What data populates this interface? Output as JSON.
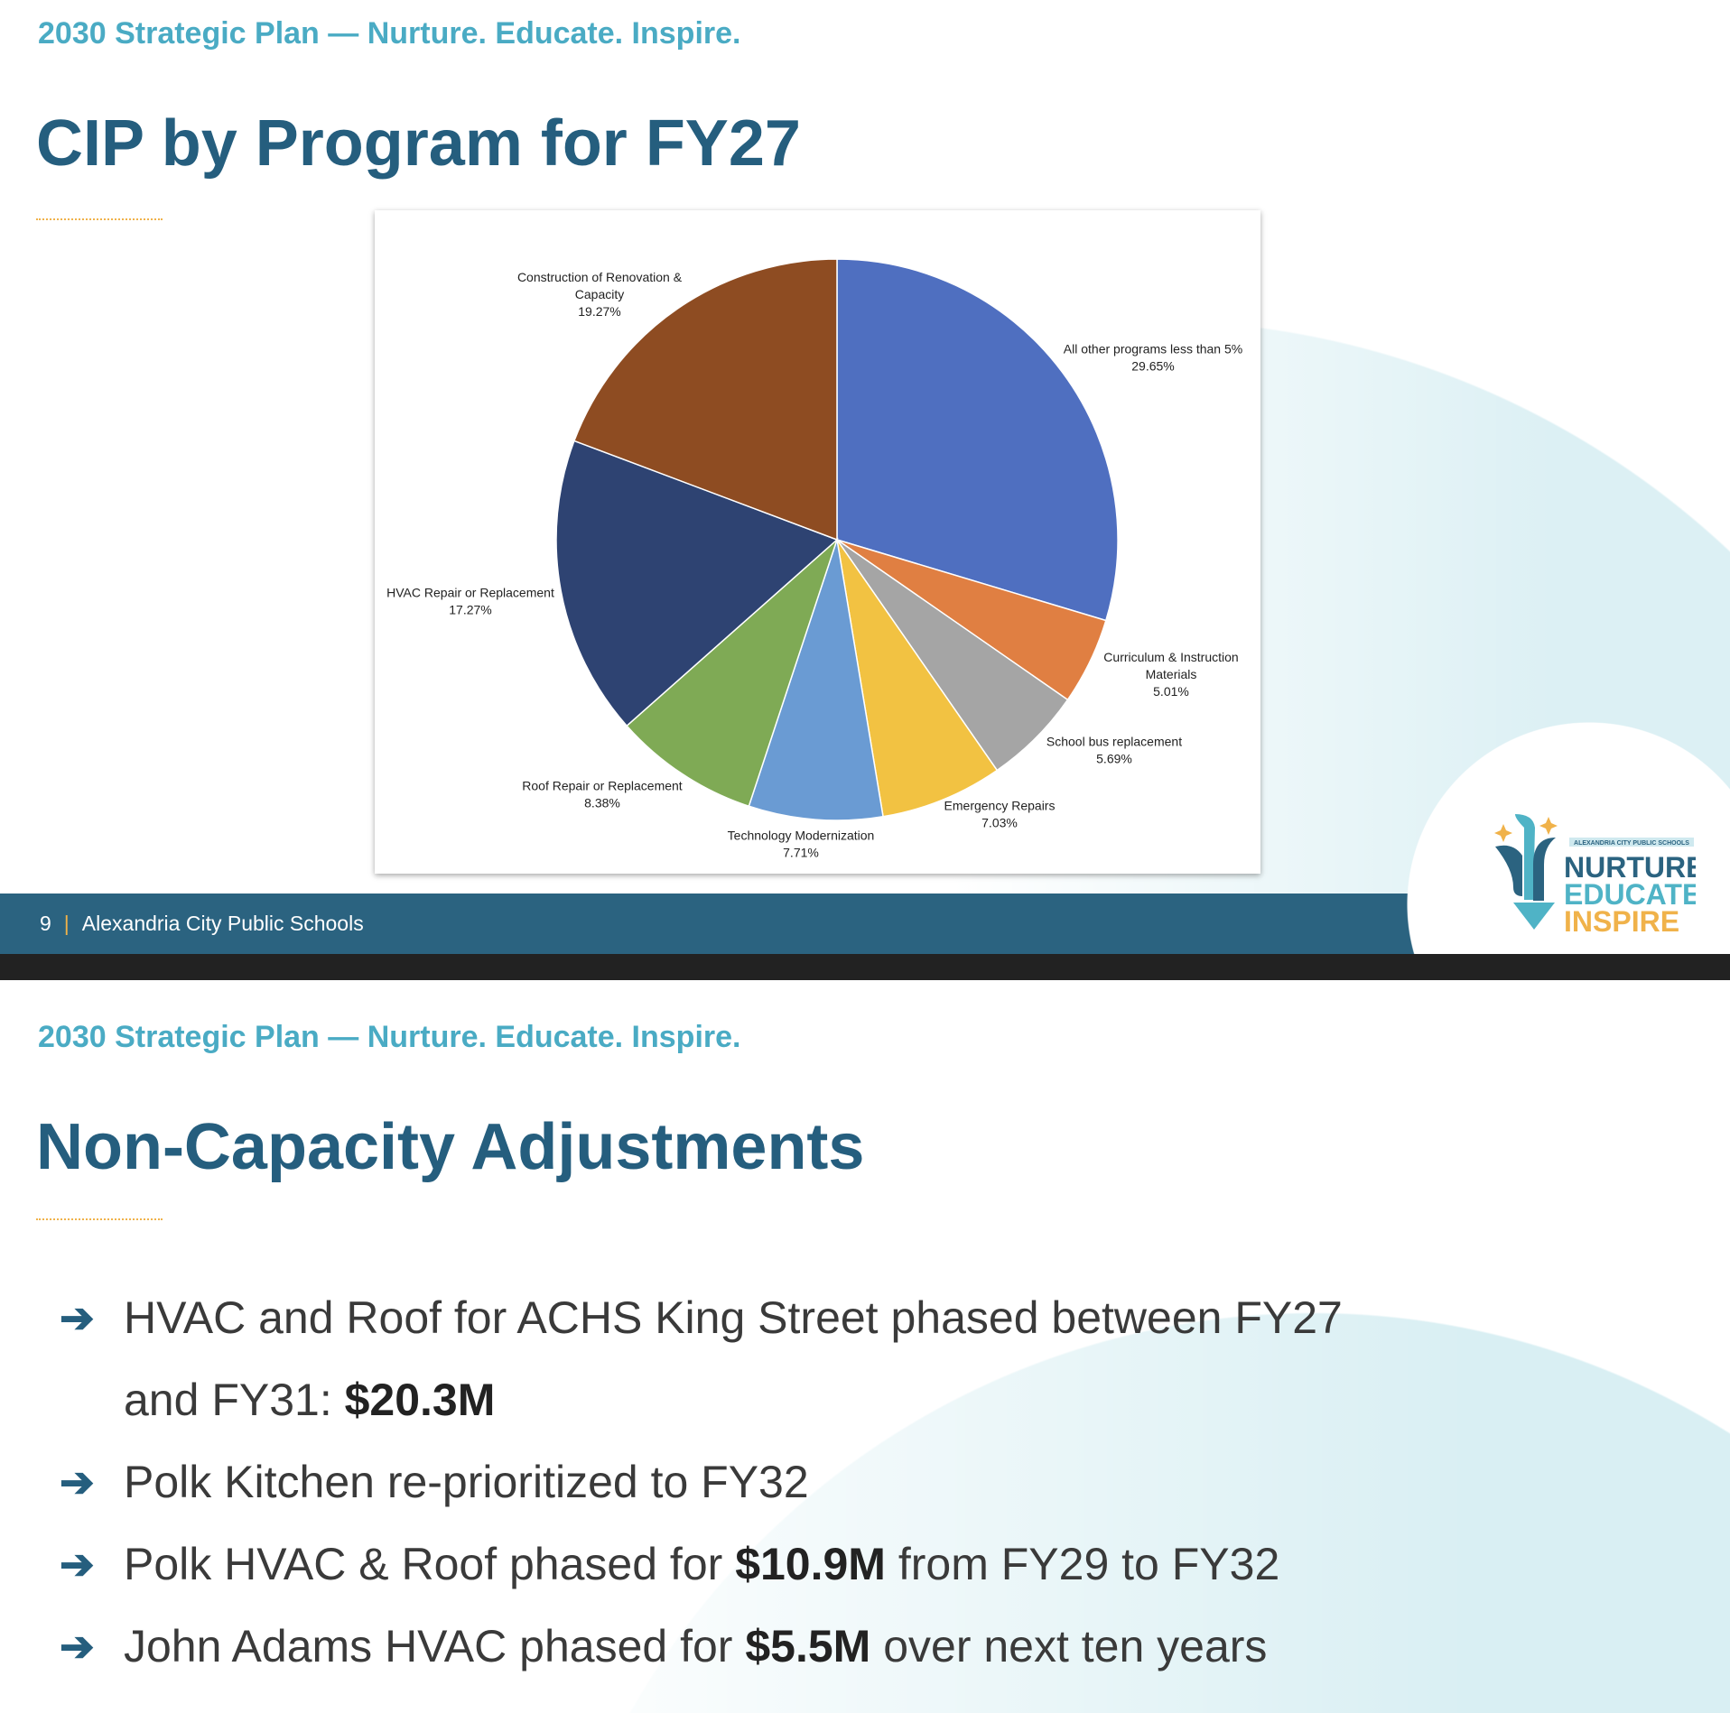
{
  "slide1": {
    "kicker": "2030 Strategic Plan — Nurture. Educate. Inspire.",
    "title": "CIP by Program for FY27",
    "footer": {
      "page": "9",
      "org": "Alexandria City Public Schools"
    },
    "logo": {
      "top": "ALEXANDRIA CITY PUBLIC SCHOOLS",
      "line1": "NURTURE",
      "line2": "EDUCATE",
      "line3": "INSPIRE"
    }
  },
  "chart_data": {
    "type": "pie",
    "title": "",
    "start": "top, clockwise",
    "slices": [
      {
        "label": [
          "All other programs less than 5%"
        ],
        "value": 29.65,
        "value_label": "29.65%",
        "color": "#4f6fc0"
      },
      {
        "label": [
          "Curriculum & Instruction",
          "Materials"
        ],
        "value": 5.01,
        "value_label": "5.01%",
        "color": "#e07f42"
      },
      {
        "label": [
          "School bus replacement"
        ],
        "value": 5.69,
        "value_label": "5.69%",
        "color": "#a5a5a5"
      },
      {
        "label": [
          "Emergency Repairs"
        ],
        "value": 7.03,
        "value_label": "7.03%",
        "color": "#f2c242"
      },
      {
        "label": [
          "Technology Modernization"
        ],
        "value": 7.71,
        "value_label": "7.71%",
        "color": "#6a9bd3"
      },
      {
        "label": [
          "Roof Repair or Replacement"
        ],
        "value": 8.38,
        "value_label": "8.38%",
        "color": "#7faa55"
      },
      {
        "label": [
          "HVAC Repair or Replacement"
        ],
        "value": 17.27,
        "value_label": "17.27%",
        "color": "#2e4372"
      },
      {
        "label": [
          "Construction of Renovation &",
          "Capacity"
        ],
        "value": 19.27,
        "value_label": "19.27%",
        "color": "#8e4c22"
      }
    ]
  },
  "slide2": {
    "kicker": "2030 Strategic Plan — Nurture. Educate. Inspire.",
    "title": "Non-Capacity Adjustments",
    "bullets": [
      {
        "a": "HVAC and Roof for ACHS King Street phased between FY27 and FY31: ",
        "b": "$20.3M",
        "c": ""
      },
      {
        "a": "Polk Kitchen re-prioritized to FY32",
        "b": "",
        "c": ""
      },
      {
        "a": "Polk HVAC & Roof phased for ",
        "b": "$10.9M",
        "c": " from FY29 to FY32"
      },
      {
        "a": "John Adams HVAC phased for ",
        "b": "$5.5M",
        "c": " over next ten years"
      }
    ]
  }
}
